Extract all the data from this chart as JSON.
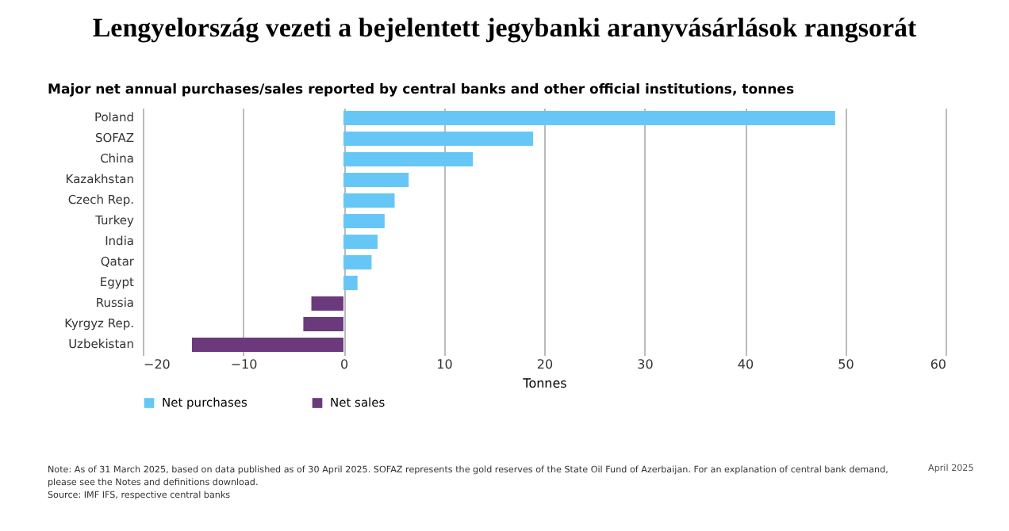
{
  "chart_data": {
    "type": "bar",
    "orientation": "horizontal",
    "title": "Lengyelország vezeti a bejelentett jegybanki aranyvásárlások rangsorát",
    "subtitle": "Major net annual purchases/sales reported by central banks and other official institutions, tonnes",
    "xlabel": "Tonnes",
    "categories": [
      "Poland",
      "SOFAZ",
      "China",
      "Kazakhstan",
      "Czech Rep.",
      "Turkey",
      "India",
      "Qatar",
      "Egypt",
      "Russia",
      "Kyrgyz Rep.",
      "Uzbekistan"
    ],
    "series": [
      {
        "name": "Net purchases",
        "color": "#66c7f7",
        "values": [
          49.0,
          18.9,
          12.9,
          6.5,
          5.1,
          4.1,
          3.4,
          2.8,
          1.4,
          null,
          null,
          null
        ]
      },
      {
        "name": "Net sales",
        "color": "#6b3a7d",
        "values": [
          null,
          null,
          null,
          null,
          null,
          null,
          null,
          null,
          null,
          -3.2,
          -4.0,
          -15.1
        ]
      }
    ],
    "xlim": [
      -20,
      60
    ],
    "xticks": [
      -20,
      -10,
      0,
      10,
      20,
      30,
      40,
      50,
      60
    ],
    "grid": "x",
    "legend": "bottom",
    "annotations": [
      "April 2025",
      "Note: As of 31 March 2025, based on data published as of 30 April 2025. SOFAZ represents the gold reserves of the State Oil Fund of Azerbaijan. For an explanation of central bank demand, please see the Notes and definitions download.",
      "Source: IMF IFS, respective central banks"
    ]
  }
}
